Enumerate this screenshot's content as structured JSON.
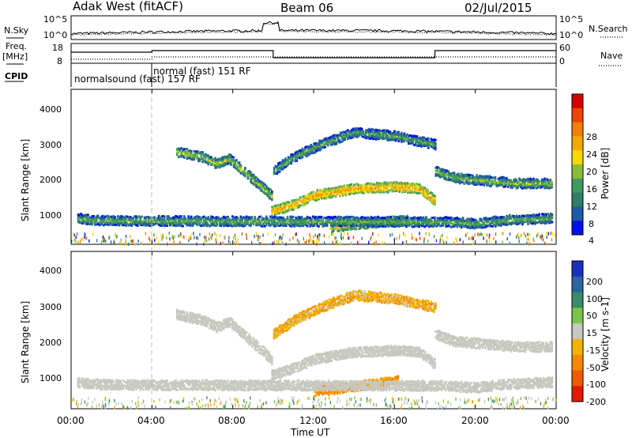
{
  "header": {
    "station": "Adak West (fitACF)",
    "beam": "Beam 06",
    "date": "02/Jul/2015"
  },
  "top_panels": {
    "nsky_label": "N.Sky",
    "nsky_ticks": [
      "10^5",
      "10^0"
    ],
    "nsearch_label": "N.Search",
    "nsearch_ticks": [
      "10^5",
      "10^0"
    ],
    "freq_label": "Freq.",
    "freq_unit": "[MHz]",
    "freq_ticks": [
      "18",
      "8"
    ],
    "nave_label": "Nave",
    "nave_ticks": [
      "60",
      "0"
    ],
    "cpid_label": "CPID",
    "cpid_segments": [
      {
        "name": "normalsound (fast) 157 RF",
        "start_h": 0,
        "end_h": 4
      },
      {
        "name": "normal (fast)  151 RF",
        "start_h": 4,
        "end_h": 24
      }
    ]
  },
  "colorbars": {
    "power": {
      "label": "Power [dB]",
      "ticks": [
        "28",
        "24",
        "20",
        "16",
        "12",
        "8",
        "4"
      ],
      "colors": [
        "#d40000",
        "#ee4400",
        "#f57f00",
        "#f3a800",
        "#f8d800",
        "#8cbb3a",
        "#3f9a5f",
        "#2f7f67",
        "#1f5aa7",
        "#0010e8"
      ]
    },
    "velocity": {
      "label": "Velocity [m s-1]",
      "ticks": [
        "200",
        "100",
        "50",
        "15",
        "-15",
        "-50",
        "-100",
        "-200"
      ],
      "colors": [
        "#1a2fbf",
        "#2b63a3",
        "#3a8c6a",
        "#7cc44c",
        "#c8c8c0",
        "#f2b400",
        "#f58a00",
        "#f05a00",
        "#e21c00"
      ]
    }
  },
  "axes": {
    "x_ticks": [
      "00:00",
      "04:00",
      "08:00",
      "12:00",
      "16:00",
      "20:00",
      "00:00"
    ],
    "x_label": "Time UT",
    "y_label": "Slant Range [km]",
    "y_ticks": [
      "1000",
      "2000",
      "3000",
      "4000"
    ]
  },
  "chart_data": [
    {
      "type": "heatmap",
      "title": "",
      "xlabel": "",
      "ylabel": "Slant Range [km]",
      "xlim": [
        0,
        24
      ],
      "ylim": [
        180,
        4600
      ],
      "colorbar_label": "Power [dB]",
      "colorbar_range": [
        0,
        32
      ],
      "bands": [
        {
          "points": [
            [
              5.2,
              2850
            ],
            [
              6.5,
              2700
            ],
            [
              7.2,
              2500
            ],
            [
              7.8,
              2650
            ],
            [
              8.5,
              2300
            ],
            [
              9.2,
              1950
            ],
            [
              9.9,
              1600
            ]
          ],
          "power": 15
        },
        {
          "points": [
            [
              9.9,
              1150
            ],
            [
              11,
              1350
            ],
            [
              12,
              1600
            ],
            [
              14,
              1800
            ],
            [
              16,
              1850
            ],
            [
              17.2,
              1800
            ],
            [
              18,
              1450
            ]
          ],
          "power": 22
        },
        {
          "points": [
            [
              10,
              2300
            ],
            [
              11,
              2700
            ],
            [
              12.5,
              3100
            ],
            [
              14,
              3400
            ],
            [
              16,
              3300
            ],
            [
              17.2,
              3150
            ],
            [
              18,
              3050
            ]
          ],
          "power": 12
        },
        {
          "points": [
            [
              18,
              2300
            ],
            [
              19,
              2100
            ],
            [
              20,
              2050
            ],
            [
              22,
              1950
            ],
            [
              23.8,
              1950
            ]
          ],
          "power": 14
        },
        {
          "points": [
            [
              12.8,
              700
            ],
            [
              14,
              780
            ],
            [
              15.5,
              850
            ],
            [
              16.6,
              900
            ]
          ],
          "power": 18
        },
        {
          "points": [
            [
              0.3,
              950
            ],
            [
              1,
              900
            ],
            [
              2,
              880
            ],
            [
              18.6,
              850
            ],
            [
              20,
              800
            ],
            [
              21.5,
              900
            ],
            [
              23.8,
              950
            ]
          ],
          "power": 13
        }
      ]
    },
    {
      "type": "heatmap",
      "title": "",
      "xlabel": "Time UT",
      "ylabel": "Slant Range [km]",
      "xlim": [
        0,
        24
      ],
      "ylim": [
        180,
        4600
      ],
      "colorbar_label": "Velocity [m s-1]",
      "colorbar_range": [
        -250,
        250
      ],
      "bands": [
        {
          "points": [
            [
              5.2,
              2850
            ],
            [
              6.5,
              2700
            ],
            [
              7.2,
              2500
            ],
            [
              7.8,
              2650
            ],
            [
              8.5,
              2300
            ],
            [
              9.2,
              1950
            ],
            [
              9.9,
              1600
            ]
          ],
          "velocity": 0
        },
        {
          "points": [
            [
              9.9,
              1150
            ],
            [
              11,
              1350
            ],
            [
              12,
              1600
            ],
            [
              14,
              1800
            ],
            [
              16,
              1850
            ],
            [
              17.2,
              1800
            ],
            [
              18,
              1450
            ]
          ],
          "velocity": 0
        },
        {
          "points": [
            [
              10,
              2300
            ],
            [
              11,
              2700
            ],
            [
              12.5,
              3100
            ],
            [
              14,
              3400
            ],
            [
              16,
              3300
            ],
            [
              17.2,
              3150
            ],
            [
              18,
              3050
            ]
          ],
          "velocity": -25
        },
        {
          "points": [
            [
              18,
              2300
            ],
            [
              19,
              2100
            ],
            [
              20,
              2050
            ],
            [
              22,
              1950
            ],
            [
              23.8,
              1950
            ]
          ],
          "velocity": 0
        },
        {
          "points": [
            [
              12.0,
              700
            ],
            [
              13.5,
              800
            ],
            [
              15,
              900
            ],
            [
              16.2,
              1000
            ]
          ],
          "velocity": -40
        },
        {
          "points": [
            [
              0.3,
              950
            ],
            [
              1,
              900
            ],
            [
              2,
              880
            ],
            [
              18.6,
              850
            ],
            [
              20,
              800
            ],
            [
              21.5,
              900
            ],
            [
              23.8,
              950
            ]
          ],
          "velocity": 0
        }
      ]
    }
  ]
}
